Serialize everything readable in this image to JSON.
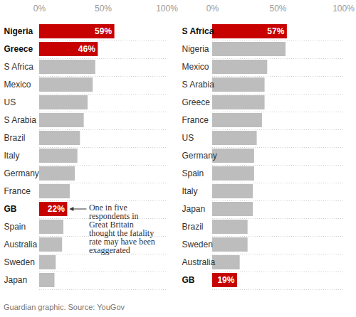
{
  "chart_data": [
    {
      "type": "bar",
      "orientation": "horizontal",
      "data_labels": true,
      "categories": [
        "Nigeria",
        "Greece",
        "S Africa",
        "Mexico",
        "US",
        "S Arabia",
        "Brazil",
        "Italy",
        "Germany",
        "France",
        "GB",
        "Spain",
        "Australia",
        "Sweden",
        "Japan"
      ],
      "values": [
        59,
        46,
        44,
        42,
        38,
        35,
        32,
        30,
        28,
        24,
        22,
        19,
        18,
        13,
        12
      ],
      "value_labels": [
        "59%",
        "46%",
        null,
        null,
        null,
        null,
        null,
        null,
        null,
        null,
        "22%",
        null,
        null,
        null,
        null
      ],
      "colors": [
        "#c70000",
        "#c70000",
        "#bdbdbd",
        "#bdbdbd",
        "#bdbdbd",
        "#bdbdbd",
        "#bdbdbd",
        "#bdbdbd",
        "#bdbdbd",
        "#bdbdbd",
        "#c70000",
        "#bdbdbd",
        "#bdbdbd",
        "#bdbdbd",
        "#bdbdbd"
      ],
      "xlim": [
        0,
        100
      ],
      "xticks": [
        {
          "value": 0,
          "label": "0%"
        },
        {
          "value": 50,
          "label": "50%"
        },
        {
          "value": 100,
          "label": "100%"
        }
      ],
      "annotation": {
        "text": "One in five respondents in Great Britain thought the fatality rate may have been exaggerated",
        "category": "GB"
      }
    },
    {
      "type": "bar",
      "orientation": "horizontal",
      "data_labels": true,
      "categories": [
        "S Africa",
        "Nigeria",
        "Mexico",
        "S Arabia",
        "Greece",
        "France",
        "US",
        "Germany",
        "Spain",
        "Italy",
        "Japan",
        "Brazil",
        "Sweden",
        "Australia",
        "GB"
      ],
      "values": [
        57,
        56,
        42,
        40,
        40,
        38,
        34,
        32,
        32,
        31,
        31,
        27,
        27,
        21,
        19
      ],
      "value_labels": [
        "57%",
        null,
        null,
        null,
        null,
        null,
        null,
        null,
        null,
        null,
        null,
        null,
        null,
        null,
        "19%"
      ],
      "colors": [
        "#c70000",
        "#bdbdbd",
        "#bdbdbd",
        "#bdbdbd",
        "#bdbdbd",
        "#bdbdbd",
        "#bdbdbd",
        "#bdbdbd",
        "#bdbdbd",
        "#bdbdbd",
        "#bdbdbd",
        "#bdbdbd",
        "#bdbdbd",
        "#bdbdbd",
        "#c70000"
      ],
      "xlim": [
        0,
        100
      ],
      "xticks": [
        {
          "value": 0,
          "label": "0%"
        },
        {
          "value": 50,
          "label": "50%"
        },
        {
          "value": 100,
          "label": "100%"
        }
      ]
    }
  ],
  "caption": "Guardian graphic. Source: YouGov"
}
